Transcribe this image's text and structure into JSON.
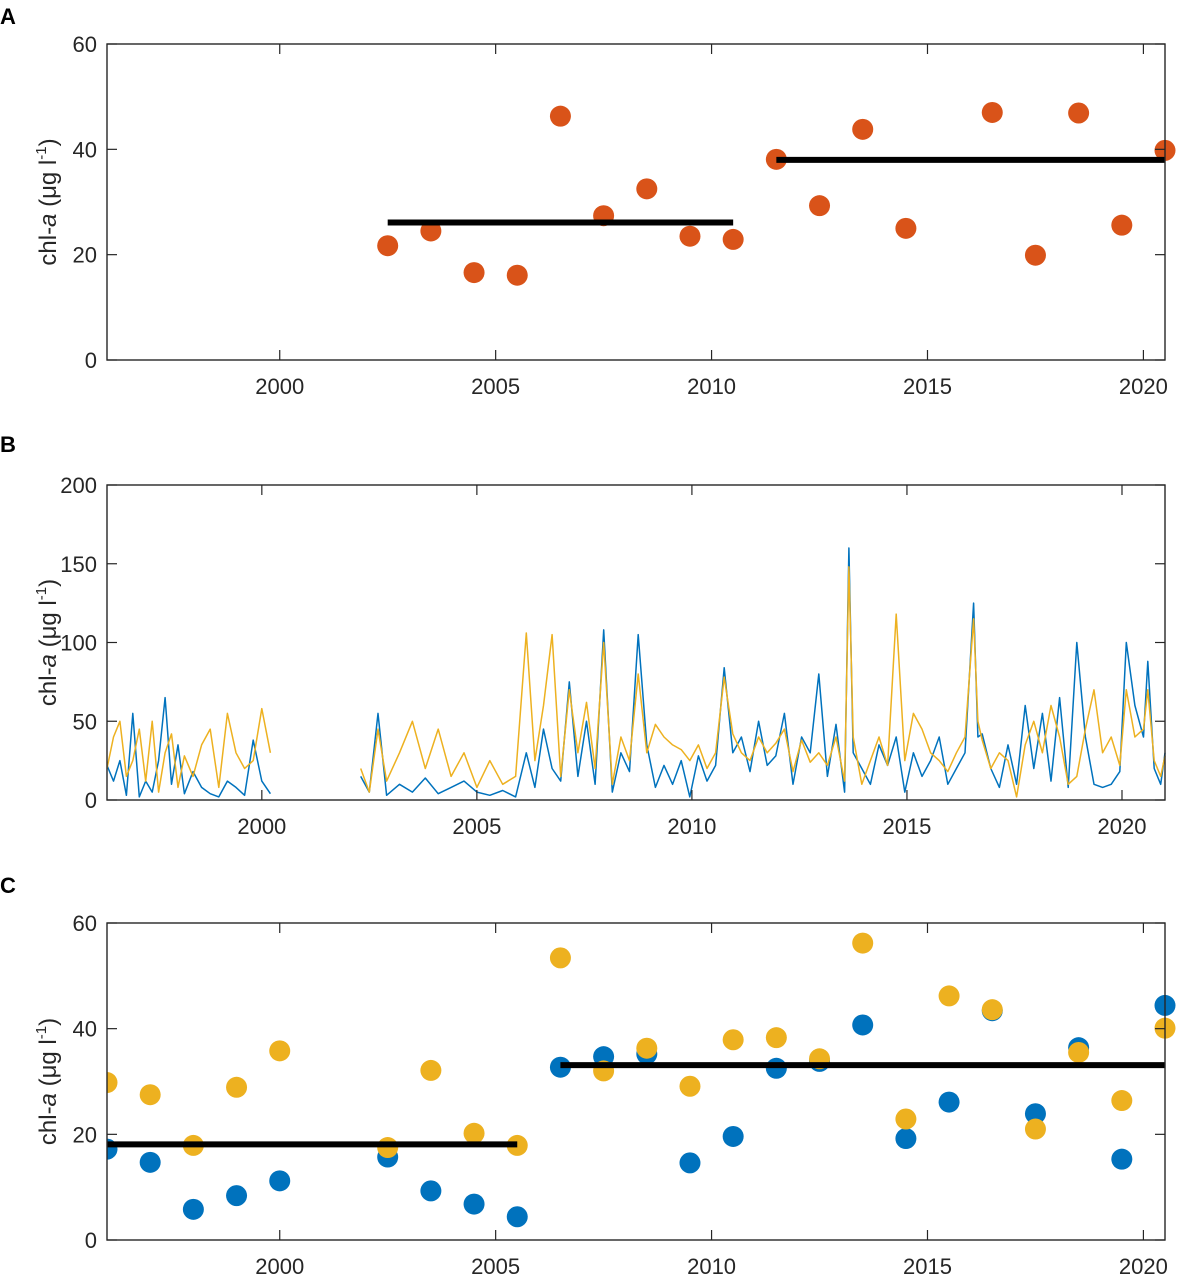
{
  "colors": {
    "series_orange": "#D95319",
    "series_blue": "#0072BD",
    "series_yellow": "#EDB120",
    "mean_line": "#000000",
    "axis": "#262626"
  },
  "chart_data": [
    {
      "panel": "A",
      "type": "scatter",
      "ylabel": {
        "prefix": "chl-",
        "italic": "a",
        "unit": " (μg l",
        "sup": "-1",
        "close": ")"
      },
      "xlim": [
        1996,
        2020.5
      ],
      "ylim": [
        0,
        60
      ],
      "xticks": [
        2000,
        2005,
        2010,
        2015,
        2020
      ],
      "yticks": [
        0,
        20,
        40,
        60
      ],
      "series": [
        {
          "color": "#D95319",
          "x": [
            2002.5,
            2003.5,
            2004.5,
            2005.5,
            2006.5,
            2007.5,
            2008.5,
            2009.5,
            2010.5,
            2011.5,
            2012.5,
            2013.5,
            2014.5,
            2016.5,
            2017.5,
            2018.5,
            2019.5,
            2020.5
          ],
          "y": [
            21.7,
            24.5,
            16.6,
            16.1,
            46.3,
            27.4,
            32.5,
            23.5,
            22.9,
            38.1,
            29.3,
            43.8,
            25.0,
            47.0,
            19.9,
            46.9,
            25.6,
            39.8
          ]
        }
      ],
      "mean_lines": [
        {
          "x": [
            2002.5,
            2010.5
          ],
          "y": 26.1
        },
        {
          "x": [
            2011.5,
            2020.5
          ],
          "y": 38.0
        }
      ]
    },
    {
      "panel": "B",
      "type": "line",
      "ylabel": {
        "prefix": "chl-",
        "italic": "a",
        "unit": " (μg l",
        "sup": "-1",
        "close": ")"
      },
      "xlim": [
        1996.4,
        2021
      ],
      "ylim": [
        0,
        200
      ],
      "xticks": [
        2000,
        2005,
        2010,
        2015,
        2020
      ],
      "yticks": [
        0,
        50,
        100,
        150,
        200
      ],
      "series": [
        {
          "color": "#0072BD",
          "x": [
            1996.4,
            1996.55,
            1996.7,
            1996.85,
            1997.0,
            1997.15,
            1997.3,
            1997.45,
            1997.6,
            1997.75,
            1997.9,
            1998.05,
            1998.2,
            1998.4,
            1998.6,
            1998.8,
            1999.0,
            1999.2,
            1999.4,
            1999.6,
            1999.8,
            2000.0,
            2000.2,
            null,
            2002.3,
            2002.5,
            2002.7,
            2002.9,
            2003.2,
            2003.5,
            2003.8,
            2004.1,
            2004.4,
            2004.7,
            2005.0,
            2005.3,
            2005.6,
            2005.9,
            2006.15,
            2006.35,
            2006.55,
            2006.75,
            2006.95,
            2007.15,
            2007.35,
            2007.55,
            2007.75,
            2007.95,
            2008.15,
            2008.35,
            2008.55,
            2008.75,
            2008.95,
            2009.15,
            2009.35,
            2009.55,
            2009.75,
            2009.95,
            2010.15,
            2010.35,
            2010.55,
            2010.75,
            2010.95,
            2011.15,
            2011.35,
            2011.55,
            2011.75,
            2011.95,
            2012.15,
            2012.35,
            2012.55,
            2012.75,
            2012.95,
            2013.15,
            2013.35,
            2013.55,
            2013.65,
            2013.75,
            2013.95,
            2014.15,
            2014.35,
            2014.55,
            2014.75,
            2014.95,
            2015.15,
            2015.35,
            2015.55,
            2015.75,
            2015.95,
            2016.15,
            2016.35,
            2016.55,
            2016.65,
            2016.75,
            2016.95,
            2017.15,
            2017.35,
            2017.55,
            2017.75,
            2017.95,
            2018.15,
            2018.35,
            2018.55,
            2018.75,
            2018.95,
            2019.15,
            2019.35,
            2019.55,
            2019.75,
            2019.95,
            2020.1,
            2020.3,
            2020.5,
            2020.6,
            2020.75,
            2020.9,
            2021.0
          ],
          "y": [
            22,
            12,
            25,
            3,
            55,
            2,
            12,
            5,
            25,
            65,
            10,
            35,
            4,
            18,
            8,
            4,
            2,
            12,
            8,
            3,
            38,
            12,
            4,
            null,
            15,
            5,
            55,
            3,
            10,
            5,
            14,
            4,
            8,
            12,
            5,
            3,
            6,
            2,
            30,
            8,
            45,
            20,
            12,
            75,
            15,
            50,
            10,
            108,
            5,
            30,
            18,
            105,
            35,
            8,
            22,
            10,
            25,
            2,
            28,
            12,
            22,
            84,
            30,
            40,
            18,
            50,
            22,
            28,
            55,
            10,
            40,
            30,
            80,
            15,
            48,
            5,
            160,
            30,
            20,
            10,
            35,
            22,
            40,
            5,
            30,
            15,
            25,
            40,
            10,
            20,
            30,
            125,
            40,
            42,
            20,
            8,
            35,
            10,
            60,
            20,
            55,
            12,
            65,
            8,
            100,
            40,
            10,
            8,
            10,
            18,
            100,
            60,
            40,
            88,
            20,
            10,
            30
          ]
        },
        {
          "color": "#EDB120",
          "x": [
            1996.4,
            1996.55,
            1996.7,
            1996.85,
            1997.0,
            1997.15,
            1997.3,
            1997.45,
            1997.6,
            1997.75,
            1997.9,
            1998.05,
            1998.2,
            1998.4,
            1998.6,
            1998.8,
            1999.0,
            1999.2,
            1999.4,
            1999.6,
            1999.8,
            2000.0,
            2000.2,
            null,
            2002.3,
            2002.5,
            2002.7,
            2002.9,
            2003.2,
            2003.5,
            2003.8,
            2004.1,
            2004.4,
            2004.7,
            2005.0,
            2005.3,
            2005.6,
            2005.9,
            2006.15,
            2006.35,
            2006.55,
            2006.75,
            2006.95,
            2007.15,
            2007.35,
            2007.55,
            2007.75,
            2007.95,
            2008.15,
            2008.35,
            2008.55,
            2008.75,
            2008.95,
            2009.15,
            2009.35,
            2009.55,
            2009.75,
            2009.95,
            2010.15,
            2010.35,
            2010.55,
            2010.75,
            2010.95,
            2011.15,
            2011.35,
            2011.55,
            2011.75,
            2011.95,
            2012.15,
            2012.35,
            2012.55,
            2012.75,
            2012.95,
            2013.15,
            2013.35,
            2013.55,
            2013.65,
            2013.75,
            2013.95,
            2014.15,
            2014.35,
            2014.55,
            2014.75,
            2014.95,
            2015.15,
            2015.35,
            2015.55,
            2015.75,
            2015.95,
            2016.15,
            2016.35,
            2016.55,
            2016.65,
            2016.75,
            2016.95,
            2017.15,
            2017.35,
            2017.55,
            2017.75,
            2017.95,
            2018.15,
            2018.35,
            2018.55,
            2018.75,
            2018.95,
            2019.15,
            2019.35,
            2019.55,
            2019.75,
            2019.95,
            2020.1,
            2020.3,
            2020.5,
            2020.6,
            2020.75,
            2020.9,
            2021.0
          ],
          "y": [
            20,
            40,
            50,
            15,
            25,
            45,
            12,
            50,
            5,
            30,
            42,
            8,
            28,
            15,
            35,
            45,
            8,
            55,
            30,
            20,
            25,
            58,
            30,
            null,
            20,
            5,
            45,
            12,
            30,
            50,
            20,
            45,
            15,
            30,
            8,
            25,
            10,
            15,
            106,
            25,
            60,
            105,
            15,
            70,
            30,
            62,
            20,
            100,
            10,
            40,
            25,
            80,
            30,
            48,
            40,
            35,
            32,
            25,
            35,
            20,
            30,
            78,
            42,
            30,
            25,
            40,
            30,
            36,
            45,
            18,
            38,
            24,
            30,
            22,
            40,
            12,
            148,
            40,
            10,
            25,
            40,
            22,
            118,
            25,
            55,
            45,
            30,
            25,
            18,
            30,
            40,
            115,
            50,
            38,
            20,
            30,
            25,
            2,
            35,
            50,
            30,
            60,
            40,
            10,
            15,
            45,
            70,
            30,
            40,
            22,
            70,
            40,
            45,
            70,
            25,
            15,
            28
          ]
        }
      ]
    },
    {
      "panel": "C",
      "type": "scatter",
      "ylabel": {
        "prefix": "chl-",
        "italic": "a",
        "unit": " (μg l",
        "sup": "-1",
        "close": ")"
      },
      "xlim": [
        1996,
        2020.5
      ],
      "ylim": [
        0,
        60
      ],
      "xticks": [
        2000,
        2005,
        2010,
        2015,
        2020
      ],
      "yticks": [
        0,
        20,
        40,
        60
      ],
      "series": [
        {
          "color": "#0072BD",
          "x": [
            1996.0,
            1997.0,
            1998.0,
            1999.0,
            2000.0,
            2002.5,
            2003.5,
            2004.5,
            2005.5,
            2006.5,
            2007.5,
            2008.5,
            2009.5,
            2010.5,
            2011.5,
            2012.5,
            2013.5,
            2014.5,
            2015.5,
            2016.5,
            2017.5,
            2018.5,
            2019.5,
            2020.5
          ],
          "y": [
            17.2,
            14.7,
            5.8,
            8.4,
            11.2,
            15.7,
            9.3,
            6.8,
            4.4,
            32.7,
            34.7,
            35.2,
            14.6,
            19.6,
            32.5,
            33.8,
            40.7,
            19.2,
            26.1,
            43.4,
            23.9,
            36.4,
            15.3,
            44.4
          ]
        },
        {
          "color": "#EDB120",
          "x": [
            1996.0,
            1997.0,
            1998.0,
            1999.0,
            2000.0,
            2002.5,
            2003.5,
            2004.5,
            2005.5,
            2006.5,
            2007.5,
            2008.5,
            2009.5,
            2010.5,
            2011.5,
            2012.5,
            2013.5,
            2014.5,
            2015.5,
            2016.5,
            2017.5,
            2018.5,
            2019.5,
            2020.5
          ],
          "y": [
            29.8,
            27.5,
            17.9,
            28.9,
            35.8,
            17.5,
            32.1,
            20.2,
            17.9,
            53.4,
            32.0,
            36.3,
            29.1,
            37.9,
            38.3,
            34.3,
            56.2,
            22.9,
            46.2,
            43.6,
            21.0,
            35.5,
            26.4,
            40.1
          ]
        }
      ],
      "mean_lines": [
        {
          "x": [
            1996.0,
            2005.5
          ],
          "y": 18.1
        },
        {
          "x": [
            2006.5,
            2020.5
          ],
          "y": 33.1
        }
      ]
    }
  ]
}
